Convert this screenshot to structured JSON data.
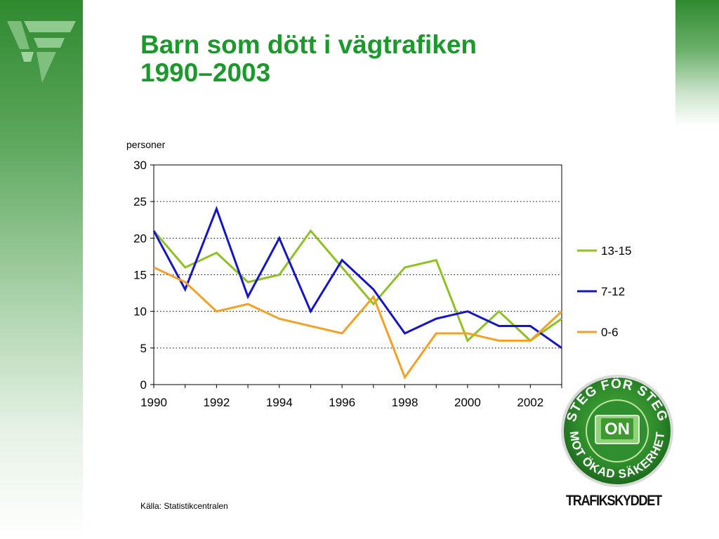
{
  "title_lines": [
    "Barn som dött i vägtrafiken",
    "1990–2003"
  ],
  "source": "Källa: Statistikcentralen",
  "badge": {
    "top_text": "STEG FÖR STEG",
    "bottom_text": "MOT ÖKAD SÄKERHET",
    "center_text": "ON",
    "brand": "TRAFIKSKYDDET"
  },
  "logo_icon": "vt-logo-icon",
  "colors": {
    "title": "#1a9a2a",
    "brand_green": "#2f8a2f"
  },
  "chart_data": {
    "type": "line",
    "title": "",
    "xlabel": "",
    "ylabel": "personer",
    "x": [
      1990,
      1991,
      1992,
      1993,
      1994,
      1995,
      1996,
      1997,
      1998,
      1999,
      2000,
      2001,
      2002,
      2003
    ],
    "x_tick_labels": [
      "1990",
      "1992",
      "1994",
      "1996",
      "1998",
      "2000",
      "2002"
    ],
    "xlim": [
      1990,
      2003
    ],
    "ylim": [
      0,
      30
    ],
    "y_ticks": [
      0,
      5,
      10,
      15,
      20,
      25,
      30
    ],
    "grid": "horizontal-dotted",
    "legend_position": "right",
    "series": [
      {
        "name": "13-15",
        "color": "#8dc21f",
        "values": [
          21,
          16,
          18,
          14,
          15,
          21,
          16,
          11,
          16,
          17,
          6,
          10,
          6,
          9
        ]
      },
      {
        "name": "7-12",
        "color": "#1414c8",
        "values": [
          21,
          13,
          24,
          12,
          20,
          10,
          17,
          13,
          7,
          9,
          10,
          8,
          8,
          5
        ]
      },
      {
        "name": "0-6",
        "color": "#f5a020",
        "values": [
          16,
          14,
          10,
          11,
          9,
          8,
          7,
          12,
          1,
          7,
          7,
          6,
          6,
          10
        ]
      }
    ]
  }
}
